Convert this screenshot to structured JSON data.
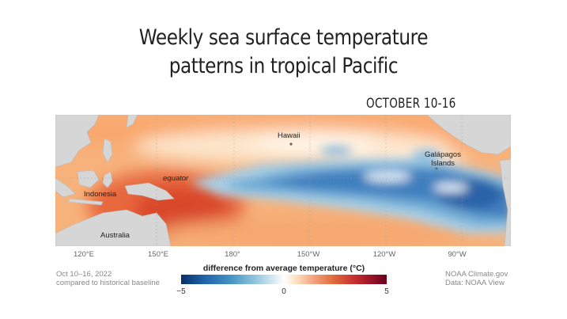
{
  "title_line1": "Weekly sea surface temperature",
  "title_line2": "patterns in tropical Pacific",
  "week_label": "OCTOBER 10-16",
  "map": {
    "labels": {
      "hawaii": "Hawaii",
      "galapagos_line1": "Galápagos",
      "galapagos_line2": "Islands",
      "equator": "equator",
      "indonesia": "Indonesia",
      "australia": "Australia"
    },
    "longitude_ticks": [
      "120°E",
      "150°E",
      "180°",
      "150°W",
      "120°W",
      "90°W"
    ]
  },
  "legend": {
    "title": "difference from average temperature (°C)",
    "min": "−5",
    "mid": "0",
    "max": "5",
    "colors": [
      "#08306b",
      "#2166ac",
      "#4393c3",
      "#92c5de",
      "#ffffff",
      "#f4a582",
      "#e06b3c",
      "#c1272d",
      "#67001f"
    ]
  },
  "footer_left": {
    "line1": "Oct 10–16, 2022",
    "line2": "compared to historical baseline"
  },
  "footer_right": {
    "line1": "NOAA Climate.gov",
    "line2": "Data: NOAA View"
  }
}
